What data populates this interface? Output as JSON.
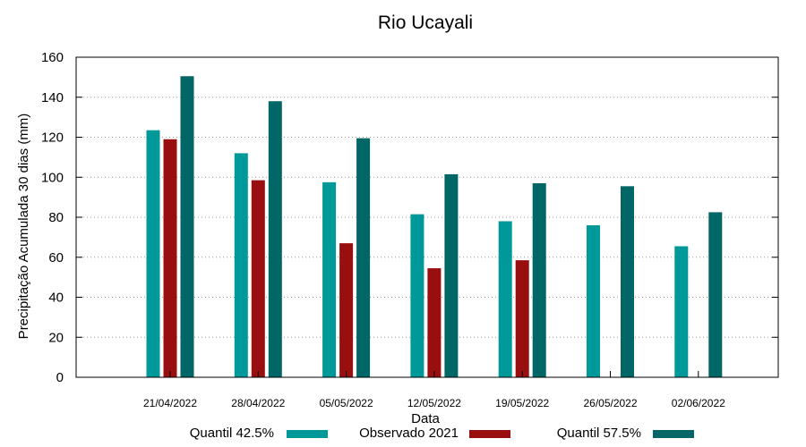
{
  "chart_data": {
    "type": "bar",
    "title": "Rio Ucayali",
    "xlabel": "Data",
    "ylabel": "Precipitação Acumulada 30 dias (mm)",
    "ylim": [
      0,
      160
    ],
    "yticks": [
      0,
      20,
      40,
      60,
      80,
      100,
      120,
      140,
      160
    ],
    "grid": true,
    "legend_position": "bottom",
    "categories": [
      "21/04/2022",
      "28/04/2022",
      "05/05/2022",
      "12/05/2022",
      "19/05/2022",
      "26/05/2022",
      "02/06/2022"
    ],
    "series": [
      {
        "name": "Quantil 42.5%",
        "color": "#009999",
        "values": [
          123.5,
          112,
          97.5,
          81.5,
          78,
          76,
          65.5
        ]
      },
      {
        "name": "Observado 2021",
        "color": "#990f0f",
        "values": [
          119,
          98.5,
          67,
          54.5,
          58.5,
          null,
          null
        ]
      },
      {
        "name": "Quantil 57.5%",
        "color": "#006666",
        "values": [
          150.5,
          138,
          119.5,
          101.5,
          97,
          95.5,
          82.5
        ]
      }
    ]
  }
}
